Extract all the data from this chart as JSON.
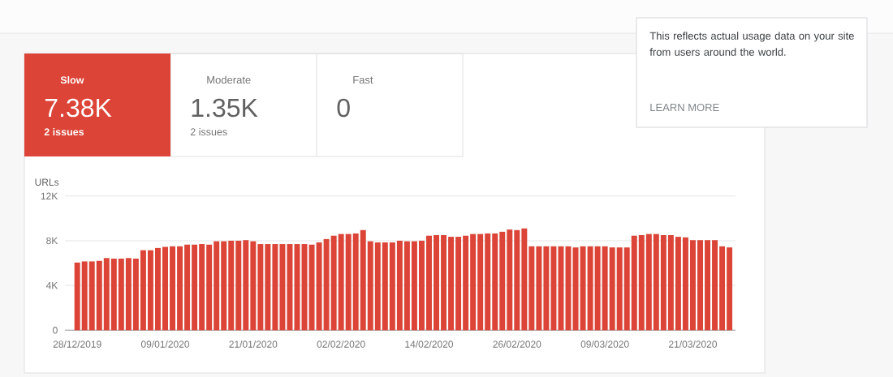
{
  "chart_data": {
    "type": "bar",
    "ylabel": "URLs",
    "categories": [
      "28/12/2019",
      null,
      null,
      null,
      null,
      null,
      null,
      null,
      null,
      null,
      null,
      null,
      "09/01/2020",
      null,
      null,
      null,
      null,
      null,
      null,
      null,
      null,
      null,
      null,
      null,
      "21/01/2020",
      null,
      null,
      null,
      null,
      null,
      null,
      null,
      null,
      null,
      null,
      null,
      "02/02/2020",
      null,
      null,
      null,
      null,
      null,
      null,
      null,
      null,
      null,
      null,
      null,
      "14/02/2020",
      null,
      null,
      null,
      null,
      null,
      null,
      null,
      null,
      null,
      null,
      null,
      "26/02/2020",
      null,
      null,
      null,
      null,
      null,
      null,
      null,
      null,
      null,
      null,
      null,
      "09/03/2020",
      null,
      null,
      null,
      null,
      null,
      null,
      null,
      null,
      null,
      null,
      null,
      "21/03/2020",
      null,
      null,
      null,
      null,
      null
    ],
    "series": [
      {
        "name": "Slow",
        "color": "#db4437",
        "values": [
          6050,
          6150,
          6150,
          6200,
          6450,
          6400,
          6400,
          6450,
          6400,
          7150,
          7150,
          7350,
          7450,
          7500,
          7500,
          7650,
          7650,
          7700,
          7650,
          7950,
          7950,
          8000,
          8000,
          8050,
          7950,
          7700,
          7700,
          7700,
          7700,
          7700,
          7700,
          7700,
          7650,
          7850,
          8150,
          8450,
          8600,
          8600,
          8650,
          8950,
          7950,
          7850,
          7850,
          7850,
          8000,
          7950,
          7950,
          8000,
          8450,
          8500,
          8500,
          8350,
          8350,
          8450,
          8600,
          8600,
          8650,
          8650,
          8800,
          9000,
          8950,
          9100,
          7500,
          7500,
          7500,
          7500,
          7500,
          7500,
          7400,
          7500,
          7500,
          7500,
          7500,
          7400,
          7400,
          7400,
          8450,
          8500,
          8600,
          8600,
          8500,
          8500,
          8350,
          8300,
          8050,
          8050,
          8050,
          8050,
          7500,
          7400
        ]
      }
    ],
    "ylim": [
      0,
      12000
    ],
    "yticks": [
      0,
      {
        "value": 4000,
        "label": "4K"
      },
      {
        "value": 8000,
        "label": "8K"
      },
      {
        "value": 12000,
        "label": "12K"
      }
    ],
    "grid": "y",
    "legend": "top left",
    "annotations": [
      "7.38K",
      "2 issues",
      "Moderate",
      "1.35K",
      "2 issues",
      "Fast",
      "0",
      "This reflects actual usage data on your site from users around the world.",
      "LEARN MORE"
    ]
  }
}
